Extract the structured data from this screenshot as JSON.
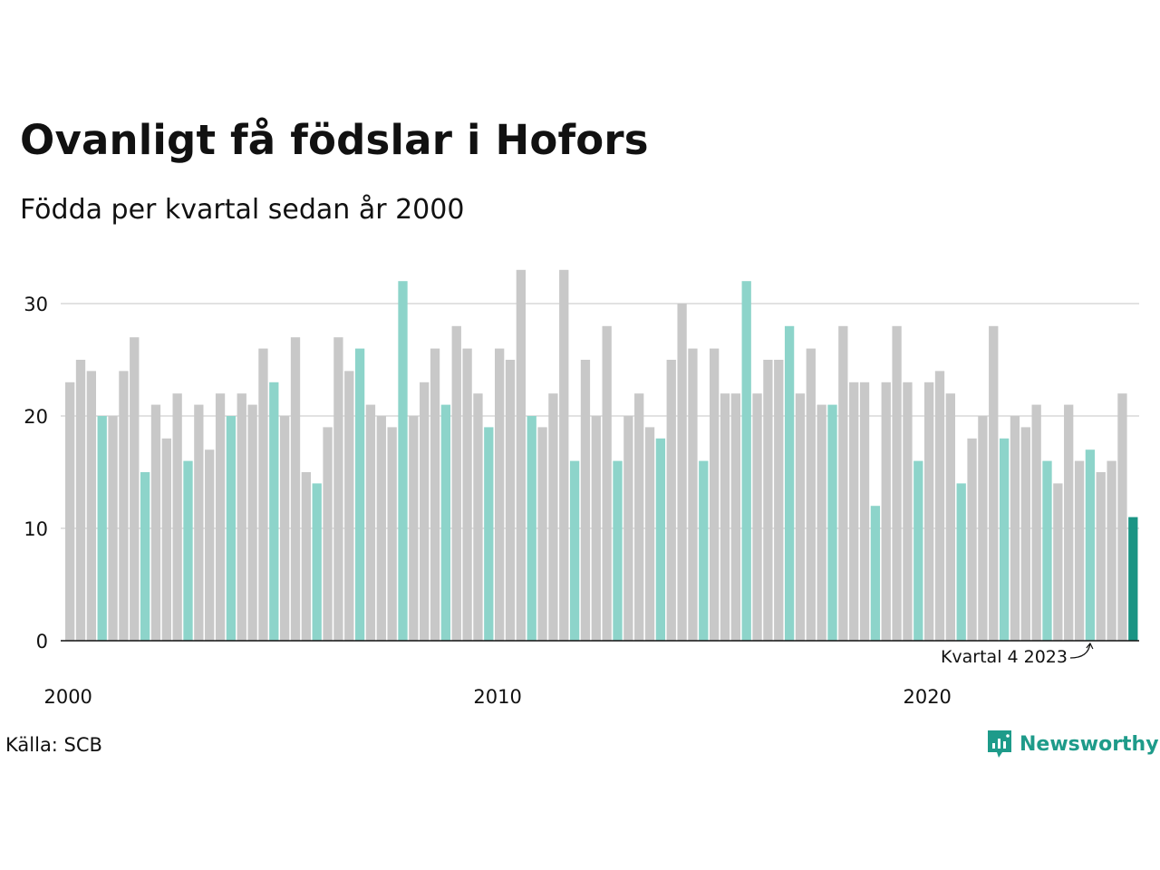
{
  "title": "Ovanligt få födslar i Hofors",
  "subtitle": "Födda per kvartal sedan år 2000",
  "source": "Källa: SCB",
  "brand": "Newsworthy",
  "colors": {
    "bar_default": "#c8c8c8",
    "bar_q4": "#8dd4ca",
    "bar_latest": "#1a9484",
    "brand": "#1e9b8a",
    "grid": "#d9d9d9",
    "axis": "#111111"
  },
  "chart_data": {
    "type": "bar",
    "start_year": 2000,
    "ylim": [
      0,
      33
    ],
    "yticks": [
      0,
      10,
      20,
      30
    ],
    "xticks": [
      "2000",
      "2010",
      "2020"
    ],
    "grid": true,
    "highlight": "fourth quarter of each year",
    "annotation": "Kvartal 4 2023",
    "values": [
      23,
      25,
      24,
      20,
      20,
      24,
      27,
      15,
      21,
      18,
      22,
      16,
      21,
      17,
      22,
      20,
      22,
      21,
      26,
      23,
      20,
      27,
      15,
      14,
      19,
      27,
      24,
      26,
      21,
      20,
      19,
      32,
      20,
      23,
      26,
      21,
      28,
      26,
      22,
      19,
      26,
      25,
      33,
      20,
      19,
      22,
      33,
      16,
      25,
      20,
      28,
      16,
      20,
      22,
      19,
      18,
      25,
      30,
      26,
      16,
      26,
      22,
      22,
      32,
      22,
      25,
      25,
      28,
      22,
      26,
      21,
      21,
      28,
      23,
      23,
      12,
      23,
      28,
      23,
      16,
      23,
      24,
      22,
      14,
      18,
      20,
      28,
      18,
      20,
      19,
      21,
      16,
      14,
      21,
      16,
      17,
      15,
      16,
      22,
      11
    ]
  }
}
